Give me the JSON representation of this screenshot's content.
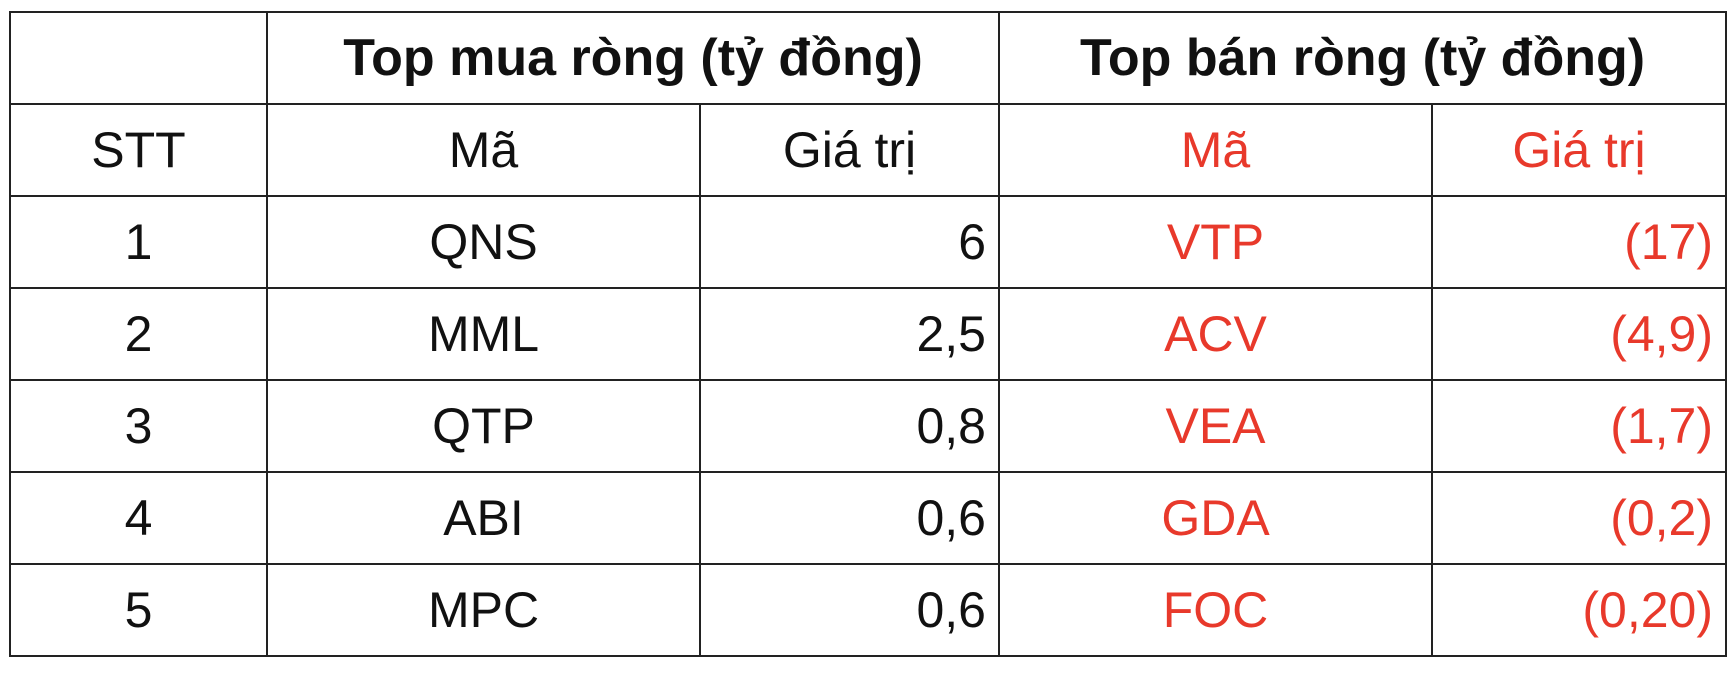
{
  "table": {
    "group_headers": [
      "Top mua ròng (tỷ đồng)",
      "Top bán ròng (tỷ đồng)"
    ],
    "columns": [
      "STT",
      "Mã",
      "Giá trị",
      "Mã",
      "Giá trị"
    ],
    "rows": [
      [
        "1",
        "QNS",
        "6",
        "VTP",
        "(17)"
      ],
      [
        "2",
        "MML",
        "2,5",
        "ACV",
        "(4,9)"
      ],
      [
        "3",
        "QTP",
        "0,8",
        "VEA",
        "(1,7)"
      ],
      [
        "4",
        "ABI",
        "0,6",
        "GDA",
        "(0,2)"
      ],
      [
        "5",
        "MPC",
        "0,6",
        "FOC",
        "(0,20)"
      ]
    ]
  }
}
